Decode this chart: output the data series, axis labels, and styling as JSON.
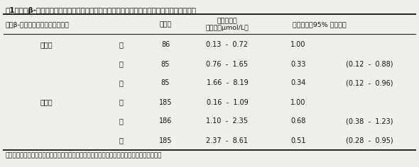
{
  "title": "表1　血清β-クリプトキサンチンレベル別にみたインスリン抵抗性出現の多変量調整オッズ比",
  "header1": "血清β-クリプトキサンチンレベル",
  "header2": "例　数",
  "header3_line1": "血清濃度の",
  "header3_line2": "レンジ（μmol/L）",
  "header4_line1": "オッズ比と95% 信頼区間",
  "footnote": "年齢・肥満度・収縮期血圧値・血清脂質・喫煙歴・運動歴・飲酒歴・総摂取カロリー量で調整",
  "rows": [
    {
      "group": "男　性",
      "level": "低",
      "n": "86",
      "range": "0.13  -  0.72",
      "or": "1.00",
      "ci": ""
    },
    {
      "group": "",
      "level": "中",
      "n": "85",
      "range": "0.76  -  1.65",
      "or": "0.33",
      "ci": "(0.12  -  0.88)"
    },
    {
      "group": "",
      "level": "高",
      "n": "85",
      "range": "1.66  -  8.19",
      "or": "0.34",
      "ci": "(0.12  -  0.96)"
    },
    {
      "group": "女　性",
      "level": "低",
      "n": "185",
      "range": "0.16  -  1.09",
      "or": "1.00",
      "ci": ""
    },
    {
      "group": "",
      "level": "中",
      "n": "186",
      "range": "1.10  -  2.35",
      "or": "0.68",
      "ci": "(0.38  -  1.23)"
    },
    {
      "group": "",
      "level": "高",
      "n": "185",
      "range": "2.37  -  8.61",
      "or": "0.51",
      "ci": "(0.28  -  0.95)"
    }
  ],
  "bg_color": "#f0f0eb",
  "text_color": "#111111",
  "line_color": "#222222"
}
